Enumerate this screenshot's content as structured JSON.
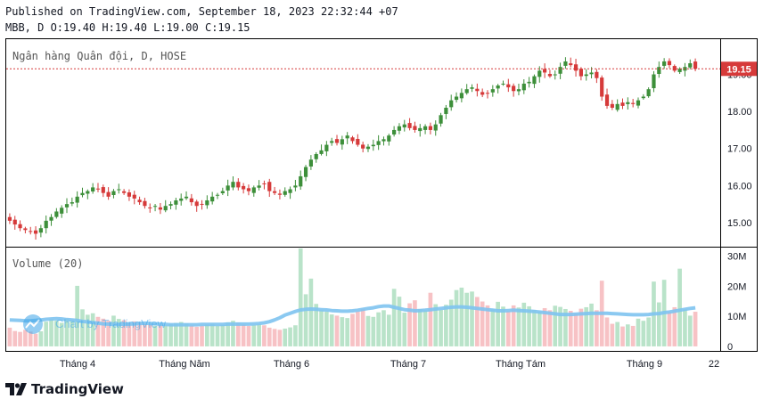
{
  "header": {
    "published": "Published on TradingView.com, September 18, 2023 22:32:44 +07",
    "ohlc": "MBB, D O:19.40 H:19.40 L:19.00 C:19.15"
  },
  "brand": {
    "footer_logo_text": "TradingView",
    "watermark_text": "Chart by TradingView",
    "logo_icon": "tradingview-logo-icon"
  },
  "colors": {
    "up": "#26a69a",
    "down": "#ef5350",
    "up_candle": "#3d8f3a",
    "down_candle": "#d63a3a",
    "up_volume": "#b9e3c9",
    "down_volume": "#f7c2c5",
    "ma_line": "#7ec3ef",
    "last_price_bg": "#d63a3a"
  },
  "chart_data": {
    "type": "candlestick",
    "title": "Ngân hàng Quân đội, D, HOSE",
    "symbol": "MBB",
    "last_price": "19.15",
    "price_axis": {
      "ticks": [
        15.0,
        16.0,
        17.0,
        18.0,
        19.0
      ],
      "tick_labels": [
        "15.00",
        "16.00",
        "17.00",
        "18.00",
        "19.00"
      ],
      "range": [
        14.35,
        19.95
      ]
    },
    "volume_axis": {
      "label": "Volume (20)",
      "ticks": [
        0,
        10,
        20,
        30
      ],
      "tick_labels": [
        "0",
        "10M",
        "20M",
        "30M"
      ],
      "range": [
        -1.5,
        32.5
      ]
    },
    "x_axis": {
      "tick_labels": [
        "Tháng 4",
        "Tháng Năm",
        "Tháng 6",
        "Tháng 7",
        "Tháng Tám",
        "Tháng 9",
        "22"
      ]
    },
    "ohlc_close": [
      15.05,
      14.95,
      14.85,
      14.8,
      14.75,
      14.7,
      14.85,
      15.05,
      15.15,
      15.3,
      15.4,
      15.5,
      15.55,
      15.7,
      15.8,
      15.85,
      15.95,
      15.9,
      15.8,
      15.7,
      15.85,
      15.9,
      15.8,
      15.7,
      15.65,
      15.55,
      15.45,
      15.4,
      15.45,
      15.35,
      15.45,
      15.5,
      15.6,
      15.65,
      15.7,
      15.55,
      15.45,
      15.5,
      15.6,
      15.7,
      15.75,
      15.85,
      16.0,
      16.1,
      15.95,
      15.9,
      15.85,
      15.95,
      16.0,
      16.05,
      15.85,
      15.8,
      15.75,
      15.85,
      15.9,
      16.0,
      16.25,
      16.5,
      16.7,
      16.85,
      16.95,
      17.1,
      17.2,
      17.15,
      17.25,
      17.35,
      17.2,
      17.1,
      17.0,
      17.05,
      17.1,
      17.2,
      17.25,
      17.35,
      17.5,
      17.6,
      17.65,
      17.55,
      17.5,
      17.55,
      17.6,
      17.5,
      17.65,
      17.9,
      18.1,
      18.3,
      18.4,
      18.5,
      18.6,
      18.65,
      18.55,
      18.45,
      18.5,
      18.6,
      18.7,
      18.75,
      18.65,
      18.55,
      18.6,
      18.75,
      18.8,
      18.95,
      19.1,
      19.05,
      18.95,
      19.0,
      19.2,
      19.35,
      19.25,
      19.1,
      18.95,
      19.0,
      19.05,
      18.9,
      18.4,
      18.15,
      18.1,
      18.2,
      18.15,
      18.25,
      18.2,
      18.3,
      18.4,
      18.6,
      19.0,
      19.2,
      19.35,
      19.25,
      19.1,
      19.15,
      19.2,
      19.3,
      19.15
    ],
    "volume_millions": [
      6.2,
      5.1,
      4.8,
      5.5,
      4.9,
      4.2,
      5.0,
      8.2,
      9.0,
      8.5,
      7.8,
      9.2,
      8.8,
      20.1,
      12.3,
      10.5,
      11.0,
      9.8,
      9.2,
      8.5,
      10.2,
      9.1,
      8.7,
      7.9,
      8.3,
      8.0,
      7.5,
      7.2,
      6.8,
      7.0,
      6.9,
      7.4,
      7.8,
      8.1,
      7.6,
      6.9,
      6.5,
      6.8,
      7.2,
      7.5,
      6.8,
      7.1,
      8.0,
      8.5,
      7.9,
      7.2,
      6.8,
      7.0,
      7.3,
      7.0,
      6.2,
      5.8,
      5.5,
      5.9,
      6.3,
      7.0,
      32.5,
      17.3,
      22.5,
      14.1,
      12.0,
      11.5,
      10.6,
      10.2,
      9.7,
      9.4,
      10.8,
      11.6,
      12.5,
      10.1,
      9.8,
      11.3,
      12.0,
      10.5,
      19.1,
      16.5,
      11.2,
      14.3,
      15.3,
      12.4,
      11.9,
      17.8,
      14.0,
      12.1,
      13.8,
      15.5,
      18.7,
      19.5,
      17.8,
      18.2,
      16.4,
      14.9,
      13.6,
      12.3,
      14.8,
      13.2,
      11.7,
      13.6,
      12.9,
      14.5,
      13.3,
      12.1,
      11.6,
      12.7,
      12.0,
      13.5,
      13.1,
      12.4,
      11.8,
      10.9,
      12.5,
      13.0,
      14.2,
      12.0,
      21.8,
      9.6,
      7.5,
      8.1,
      6.6,
      7.3,
      6.8,
      9.2,
      8.5,
      9.6,
      21.5,
      14.6,
      22.1,
      11.4,
      13.0,
      25.8,
      12.3,
      10.2,
      11.5
    ],
    "volume_ma20": [
      8.8,
      8.7,
      8.6,
      8.5,
      8.5,
      8.6,
      8.8,
      9.0,
      9.1,
      9.2,
      9.1,
      8.9,
      8.8,
      8.6,
      8.3,
      8.1,
      7.9,
      7.7,
      7.5,
      7.4,
      7.3,
      7.3,
      7.4,
      7.4,
      7.5,
      7.6,
      7.7,
      7.6,
      7.5,
      7.4,
      7.3,
      7.2,
      7.2,
      7.2,
      7.2,
      7.2,
      7.2,
      7.3,
      7.3,
      7.3,
      7.3,
      7.3,
      7.4,
      7.4,
      7.4,
      7.4,
      7.4,
      7.5,
      7.6,
      7.8,
      8.2,
      8.8,
      9.5,
      10.4,
      11.0,
      11.6,
      12.1,
      12.3,
      12.4,
      12.3,
      12.2,
      12.1,
      11.9,
      11.8,
      11.7,
      11.7,
      11.8,
      12.0,
      12.3,
      12.6,
      12.8,
      13.2,
      13.4,
      13.4,
      13.0,
      12.6,
      12.2,
      12.0,
      11.8,
      11.9,
      12.0,
      12.2,
      12.4,
      12.6,
      12.8,
      13.0,
      13.1,
      13.1,
      13.0,
      12.8,
      12.6,
      12.4,
      12.2,
      12.0,
      11.8,
      11.8,
      11.9,
      12.0,
      11.9,
      11.8,
      11.7,
      11.6,
      11.4,
      11.2,
      11.0,
      10.8,
      10.6,
      10.6,
      10.6,
      10.7,
      10.8,
      10.9,
      11.0,
      11.0,
      11.0,
      11.0,
      10.9,
      10.8,
      10.7,
      10.6,
      10.5,
      10.5,
      10.5,
      10.6,
      10.8,
      10.9,
      11.2,
      11.4,
      11.7,
      12.0,
      12.3,
      12.6,
      12.8
    ]
  }
}
